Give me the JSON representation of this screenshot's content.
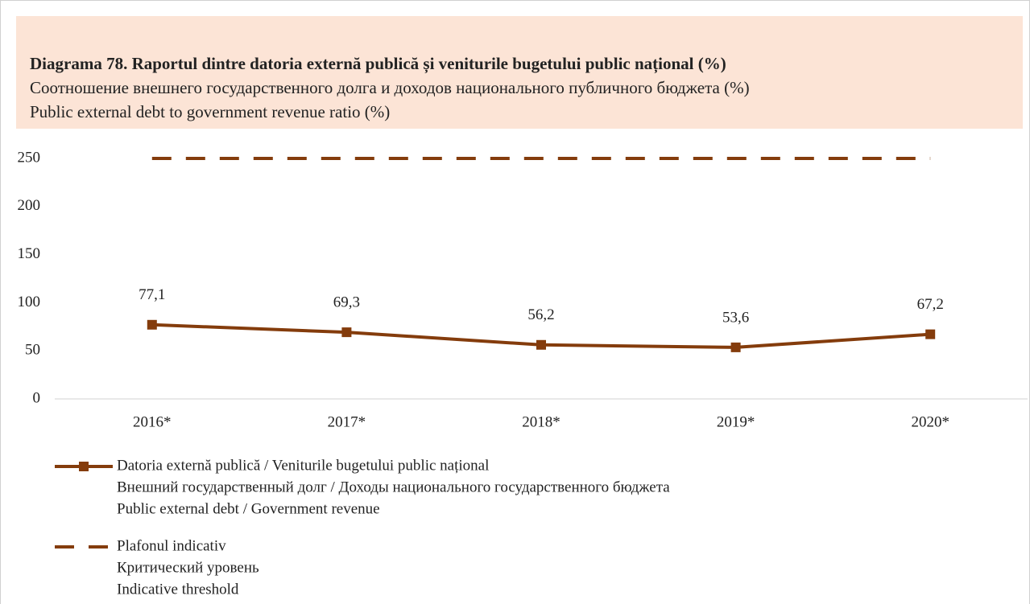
{
  "chart_data": {
    "type": "line",
    "title": "Diagrama 78. Raportul dintre datoria externă publică și veniturile bugetului public național (%)",
    "title_ru": "Соотношение внешнего государственного долга и доходов национального публичного бюджета (%)",
    "title_en": "Public external debt to government revenue ratio (%)",
    "categories": [
      "2016*",
      "2017*",
      "2018*",
      "2019*",
      "2020*"
    ],
    "series": [
      {
        "name": "Datoria externă publică / Veniturile bugetului public național",
        "name_ru": "Внешний государственный долг / Доходы национального государственного бюджета",
        "name_en": "Public external debt / Government revenue",
        "color": "#843c0c",
        "style": "solid-marker",
        "values": [
          77.1,
          69.3,
          56.2,
          53.6,
          67.2
        ],
        "value_labels": [
          "77,1",
          "69,3",
          "56,2",
          "53,6",
          "67,2"
        ]
      },
      {
        "name": "Plafonul indicativ",
        "name_ru": "Критический уровень",
        "name_en": "Indicative threshold",
        "color": "#843c0c",
        "style": "dashed",
        "values": [
          250,
          250,
          250,
          250,
          250
        ]
      }
    ],
    "ylim": [
      0,
      250
    ],
    "yticks": [
      0,
      50,
      100,
      150,
      200,
      250
    ],
    "grid": false,
    "legend": "bottom"
  }
}
